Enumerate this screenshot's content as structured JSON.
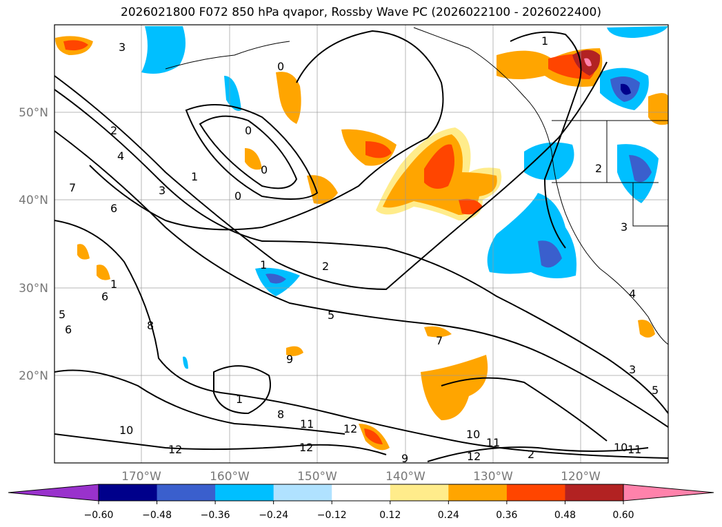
{
  "title": "2026021800 F072 850 hPa qvapor, Rossby Wave PC (2026022100 - 2026022400)",
  "map": {
    "lon_labels": [
      "170°W",
      "160°W",
      "150°W",
      "140°W",
      "130°W",
      "120°W"
    ],
    "lat_labels": [
      "50°N",
      "40°N",
      "30°N",
      "20°N"
    ],
    "contour_labels": [
      "3",
      "2",
      "4",
      "3",
      "6",
      "1",
      "0",
      "0",
      "0",
      "0",
      "1",
      "1",
      "2",
      "5",
      "7",
      "8",
      "9",
      "8",
      "10",
      "12",
      "11",
      "12",
      "12",
      "10",
      "11",
      "12",
      "9",
      "10",
      "11",
      "3",
      "4",
      "5",
      "6",
      "6",
      "5",
      "7",
      "1",
      "2",
      "3",
      "2",
      "1"
    ]
  },
  "colorbar": {
    "colors": [
      "#9932cc",
      "#00008b",
      "#3a5fcd",
      "#00bfff",
      "#b0e2ff",
      "#ffffff",
      "#ffec8b",
      "#ffa500",
      "#ff4500",
      "#b22222",
      "#ff82ab"
    ],
    "tick_labels": [
      "−0.60",
      "−0.48",
      "−0.36",
      "−0.24",
      "−0.12",
      "0.12",
      "0.24",
      "0.36",
      "0.48",
      "0.60"
    ]
  }
}
